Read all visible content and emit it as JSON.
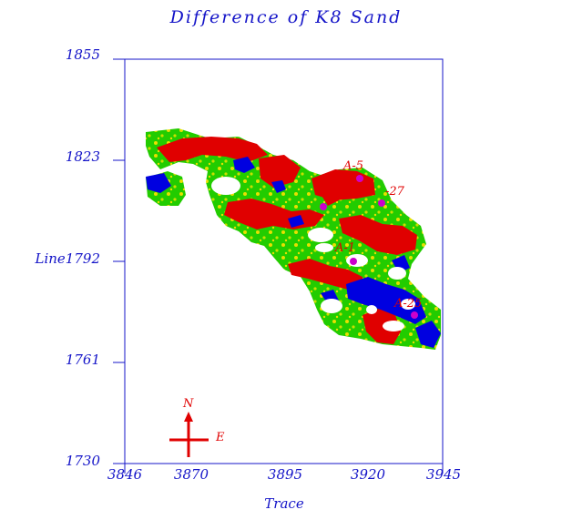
{
  "title": "Difference  of  K8  Sand",
  "x_axis": {
    "label": "Trace",
    "ticks": [
      "3846",
      "3870",
      "3895",
      "3920",
      "3945"
    ]
  },
  "y_axis": {
    "ticks": [
      "1855",
      "1823",
      "Line1792",
      "1761",
      "1730"
    ]
  },
  "wells": [
    {
      "name": "A-5",
      "trace": 3920,
      "line": 1818
    },
    {
      "name": "-27",
      "trace": 3926,
      "line": 1810
    },
    {
      "name": "",
      "trace": 3910,
      "line": 1809
    },
    {
      "name": "A-1",
      "trace": 3917,
      "line": 1792
    },
    {
      "name": "A-25",
      "trace": 3939,
      "line": 1775
    }
  ],
  "compass": {
    "north": "N",
    "east": "E"
  },
  "colors": {
    "axis": "#1414c8",
    "high": "#e00000",
    "mid": "#22cc00",
    "low": "#0000e0",
    "transition": "#e8e000",
    "well": "#cc00cc"
  }
}
